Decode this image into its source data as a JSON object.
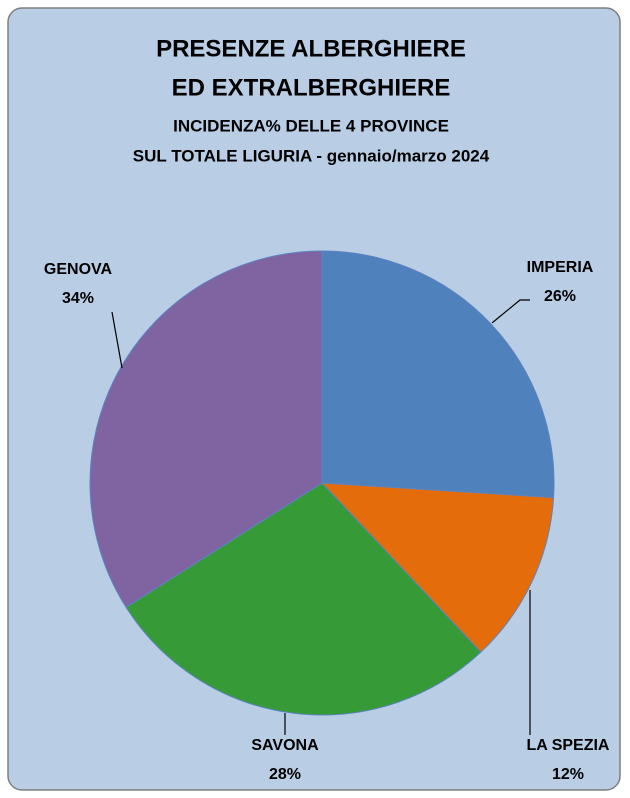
{
  "chart_data": {
    "type": "pie",
    "title": [
      "PRESENZE ALBERGHIERE",
      "ED EXTRALBERGHIERE"
    ],
    "subtitle": [
      "INCIDENZA%  DELLE 4 PROVINCE",
      "SUL TOTALE LIGURIA  - gennaio/marzo 2024"
    ],
    "categories": [
      "IMPERIA",
      "LA SPEZIA",
      "SAVONA",
      "GENOVA"
    ],
    "values": [
      26,
      12,
      28,
      34
    ],
    "value_labels": [
      "26%",
      "12%",
      "28%",
      "34%"
    ],
    "colors": [
      "#4f81bd",
      "#e46c0a",
      "#369b36",
      "#8064a2"
    ]
  }
}
